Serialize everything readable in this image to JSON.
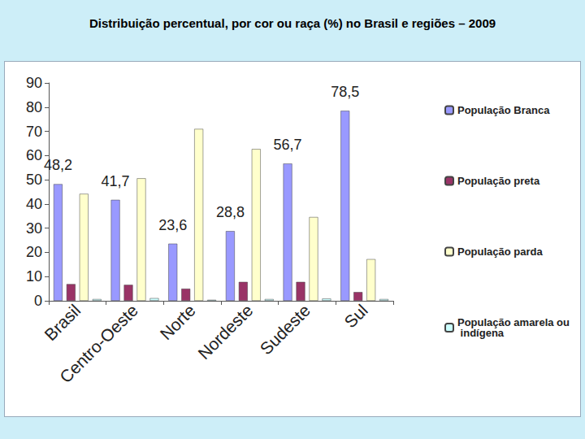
{
  "chart_data": {
    "type": "bar",
    "title": "Distribuição percentual, por cor ou raça (%) no Brasil e regiões – 2009",
    "categories": [
      "Brasil",
      "Centro-Oeste",
      "Norte",
      "Nordeste",
      "Sudeste",
      "Sul"
    ],
    "series": [
      {
        "name": "População Branca",
        "color": "#9999ff",
        "values": [
          48.2,
          41.7,
          23.6,
          28.8,
          56.7,
          78.5
        ],
        "data_labels": true,
        "value_labels": [
          "48,2",
          "41,7",
          "23,6",
          "28,8",
          "56,7",
          "78,5"
        ]
      },
      {
        "name": "População preta",
        "color": "#993366",
        "values": [
          6.9,
          6.6,
          5.0,
          7.8,
          7.8,
          3.6
        ]
      },
      {
        "name": "População parda",
        "color": "#ffffcc",
        "values": [
          44.2,
          50.6,
          71.0,
          62.7,
          34.6,
          17.2
        ]
      },
      {
        "name": "População amarela ou indígena",
        "color": "#ccffff",
        "values": [
          0.7,
          1.1,
          0.4,
          0.7,
          0.9,
          0.7
        ]
      }
    ],
    "ylim": [
      0,
      90
    ],
    "yticks": [
      0,
      10,
      20,
      30,
      40,
      50,
      60,
      70,
      80,
      90
    ],
    "grid": false,
    "legend": "right"
  }
}
